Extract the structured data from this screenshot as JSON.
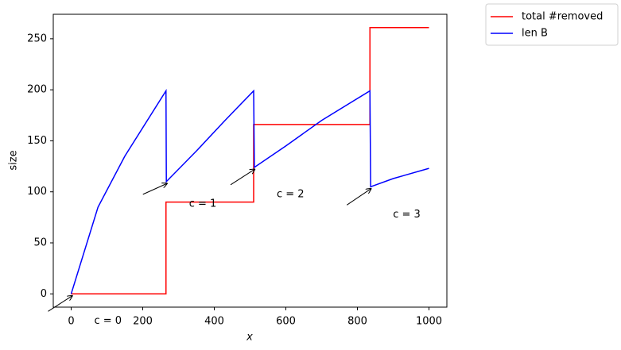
{
  "chart_data": {
    "type": "line",
    "x_label": "x",
    "y_label": "size",
    "xlim": [
      -50,
      1050
    ],
    "ylim": [
      -13,
      274
    ],
    "xticks": [
      0,
      200,
      400,
      600,
      800,
      1000
    ],
    "yticks": [
      0,
      50,
      100,
      150,
      200,
      250
    ],
    "legend": "outside upper right",
    "series": [
      {
        "name": "total #removed",
        "color": "#ff0000",
        "x": [
          0,
          265,
          265,
          510,
          510,
          835,
          835,
          1000
        ],
        "values": [
          0,
          0,
          90,
          90,
          166,
          166,
          261,
          261
        ]
      },
      {
        "name": "len B",
        "color": "#0000ff",
        "x": [
          0,
          75,
          150,
          265,
          266,
          350,
          430,
          510,
          512,
          600,
          700,
          835,
          837,
          900,
          1000
        ],
        "values": [
          0,
          85,
          135,
          199,
          110,
          140,
          170,
          199,
          124,
          145,
          170,
          199,
          105,
          113,
          123
        ]
      }
    ],
    "annotations": [
      {
        "text": "c = 0",
        "xy": [
          0,
          0
        ]
      },
      {
        "text": "c = 1",
        "xy": [
          265,
          110
        ]
      },
      {
        "text": "c = 2",
        "xy": [
          510,
          124
        ]
      },
      {
        "text": "c = 3",
        "xy": [
          835,
          105
        ]
      }
    ]
  }
}
